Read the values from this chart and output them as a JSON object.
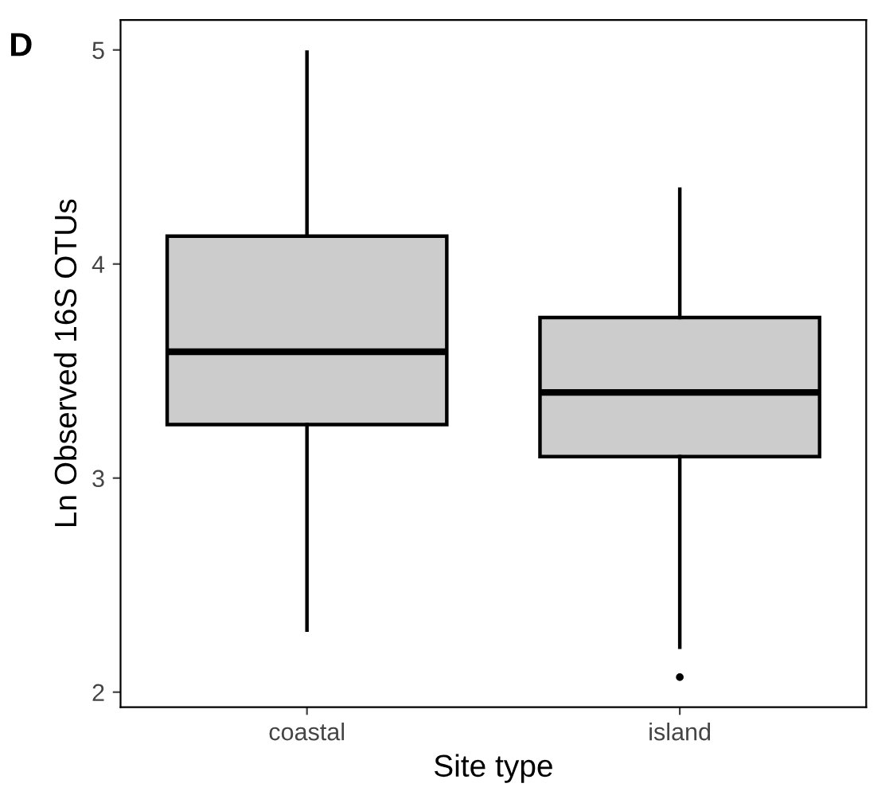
{
  "chart_data": {
    "type": "box",
    "xlabel": "Site type",
    "ylabel": "Ln Observed 16S OTUs",
    "annotations": [
      "D"
    ],
    "categories": [
      "coastal",
      "island"
    ],
    "boxes": [
      {
        "low": 2.29,
        "q1": 3.25,
        "median": 3.59,
        "q3": 4.13,
        "high": 4.99
      },
      {
        "low": 2.21,
        "q1": 3.1,
        "median": 3.4,
        "q3": 3.75,
        "high": 4.35,
        "outliers": [
          2.07
        ]
      }
    ],
    "color": "#cccccc",
    "ylim": [
      1.93,
      5.14
    ],
    "yticks": [
      2,
      3,
      4,
      5
    ],
    "grid": false
  }
}
